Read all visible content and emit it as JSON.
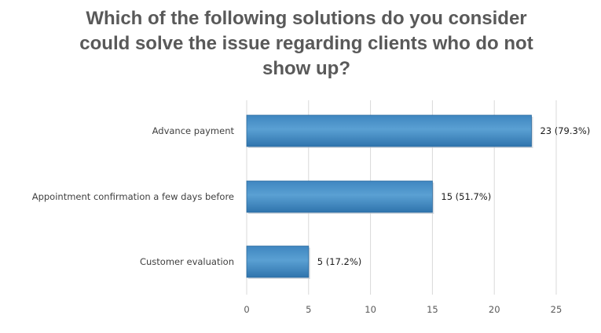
{
  "chart_data": {
    "type": "bar",
    "orientation": "horizontal",
    "title_lines": [
      "Which of the following solutions do you consider",
      "could solve the issue regarding clients who do not",
      "show up?"
    ],
    "categories": [
      "Advance payment",
      "Appointment confirmation a few days before",
      "Customer evaluation"
    ],
    "values": [
      23,
      15,
      5
    ],
    "data_labels": [
      "23 (79.3%)",
      "15 (51.7%)",
      "5 (17.2%)"
    ],
    "xlim": [
      0,
      25
    ],
    "xticks": [
      0,
      5,
      10,
      15,
      20,
      25
    ],
    "xtick_labels": [
      "0",
      "5",
      "10",
      "15",
      "20",
      "25"
    ],
    "xlabel": "",
    "ylabel": "",
    "grid": "vertical",
    "legend": "none",
    "bar_color": "#4a90c4",
    "bar_color_dark": "#2a6a9e",
    "grid_color": "#d9d9d9"
  }
}
